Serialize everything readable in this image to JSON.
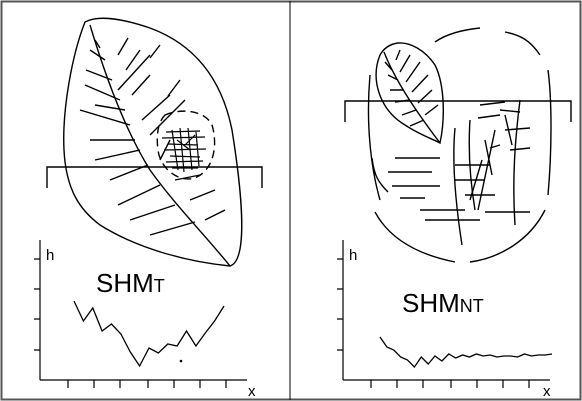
{
  "panels": {
    "left": {
      "label_main": "SHM",
      "label_sub": "T",
      "y_axis_label": "h",
      "x_axis_label": "x",
      "profile": [
        0,
        5.5,
        3.5,
        4.8,
        2.5,
        3.2,
        2.2,
        0.4,
        -1.0,
        0.8,
        0.3,
        1.2,
        1.0,
        2.5,
        1.0,
        2.3,
        3.5,
        5.0
      ],
      "isolated_point": 0.3
    },
    "right": {
      "label_main": "SHM",
      "label_sub": "NT",
      "y_axis_label": "h",
      "x_axis_label": "x",
      "profile": [
        3.5,
        2.5,
        2.2,
        1.5,
        1.2,
        0.5,
        1.5,
        0.8,
        1.6,
        1.1,
        1.8,
        1.4,
        1.7,
        1.5,
        1.8,
        1.6,
        1.7,
        1.5,
        1.6,
        1.6,
        1.5,
        1.8,
        1.6,
        1.7,
        1.7,
        1.8
      ]
    }
  },
  "colors": {
    "ink": "#000000",
    "background": "#ffffff"
  }
}
